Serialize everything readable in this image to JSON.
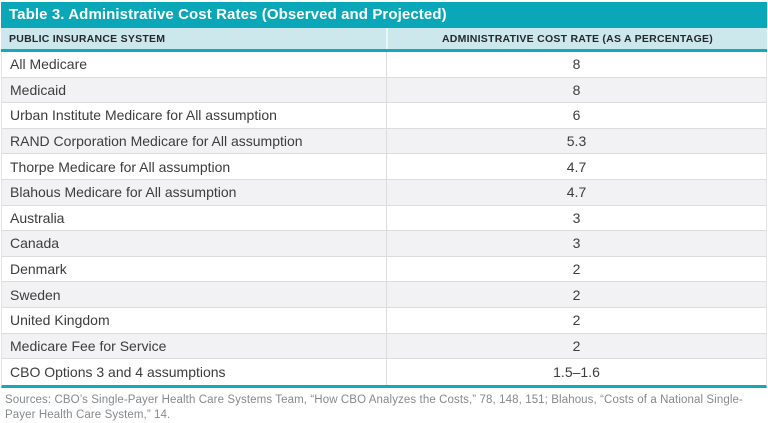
{
  "table": {
    "title": "Table 3. Administrative Cost Rates (Observed and Projected)",
    "columns": {
      "system": "PUBLIC INSURANCE SYSTEM",
      "rate": "ADMINISTRATIVE COST RATE (AS A PERCENTAGE)"
    },
    "rows": [
      {
        "system": "All Medicare",
        "rate": "8"
      },
      {
        "system": "Medicaid",
        "rate": "8"
      },
      {
        "system": "Urban Institute Medicare for All assumption",
        "rate": "6"
      },
      {
        "system": "RAND Corporation Medicare for All assumption",
        "rate": "5.3"
      },
      {
        "system": "Thorpe Medicare for All assumption",
        "rate": "4.7"
      },
      {
        "system": "Blahous Medicare for All assumption",
        "rate": "4.7"
      },
      {
        "system": "Australia",
        "rate": "3"
      },
      {
        "system": "Canada",
        "rate": "3"
      },
      {
        "system": "Denmark",
        "rate": "2"
      },
      {
        "system": "Sweden",
        "rate": "2"
      },
      {
        "system": "United Kingdom",
        "rate": "2"
      },
      {
        "system": "Medicare Fee for Service",
        "rate": "2"
      },
      {
        "system": "CBO Options 3 and 4 assumptions",
        "rate": "1.5–1.6"
      }
    ],
    "sources": "Sources: CBO’s Single-Payer Health Care Systems Team, “How CBO Analyzes the Costs,” 78, 148, 151; Blahous, “Costs of a National Single-Payer Health Care System,” 14.",
    "colors": {
      "title_bar": "#0aa7b8",
      "header_bg": "#cde8ed",
      "accent_border": "#14a9ba",
      "row_alt_bg": "#f2f2f4",
      "row_divider": "#dcdcdf",
      "body_text": "#3c3c3c",
      "header_text": "#24282b",
      "source_text": "#85898c"
    }
  }
}
